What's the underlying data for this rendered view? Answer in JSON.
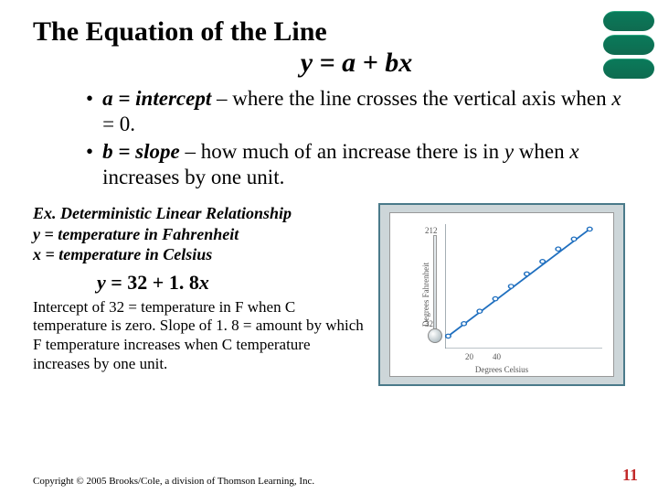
{
  "title": {
    "line1": "The Equation of the Line",
    "equation": "y = a + bx"
  },
  "bullets": [
    {
      "bold": "a = intercept",
      "rest": " – where the line crosses the vertical axis when ",
      "ital": "x",
      "rest2": " = 0."
    },
    {
      "bold": "b = slope",
      "rest": " – how much of an increase there is in ",
      "ital": "y",
      "rest2": " when ",
      "ital2": "x",
      "rest3": " increases by one unit."
    }
  ],
  "example": {
    "header1": "Ex. Deterministic Linear Relationship",
    "header2": "y = temperature in Fahrenheit",
    "header3": "x = temperature in Celsius",
    "equation_y": "y",
    "equation_rest": " = 32 + 1. 8",
    "equation_x": "x",
    "body": "Intercept of 32 = temperature in F when C temperature is zero. Slope of 1. 8 = amount by which F temperature increases when C temperature increases by one unit."
  },
  "chart": {
    "type": "line",
    "xlabel": "Degrees Celsius",
    "ylabel": "Degrees Fahrenheit",
    "yticks": {
      "low": "32",
      "high": "212"
    },
    "xticks": [
      "20",
      "40"
    ],
    "line_color": "#1f6fbf",
    "marker_color": "#1f6fbf",
    "axis_color": "#7a8a92",
    "background_color": "#ffffff",
    "border_color": "#4a7a8a",
    "points": [
      {
        "x": 0.02,
        "y": 0.9
      },
      {
        "x": 0.12,
        "y": 0.8
      },
      {
        "x": 0.22,
        "y": 0.7
      },
      {
        "x": 0.32,
        "y": 0.6
      },
      {
        "x": 0.42,
        "y": 0.5
      },
      {
        "x": 0.52,
        "y": 0.4
      },
      {
        "x": 0.62,
        "y": 0.3
      },
      {
        "x": 0.72,
        "y": 0.2
      },
      {
        "x": 0.82,
        "y": 0.12
      },
      {
        "x": 0.92,
        "y": 0.04
      }
    ]
  },
  "footer": {
    "copyright": "Copyright © 2005 Brooks/Cole, a division of Thomson Learning, Inc.",
    "page": "11"
  }
}
